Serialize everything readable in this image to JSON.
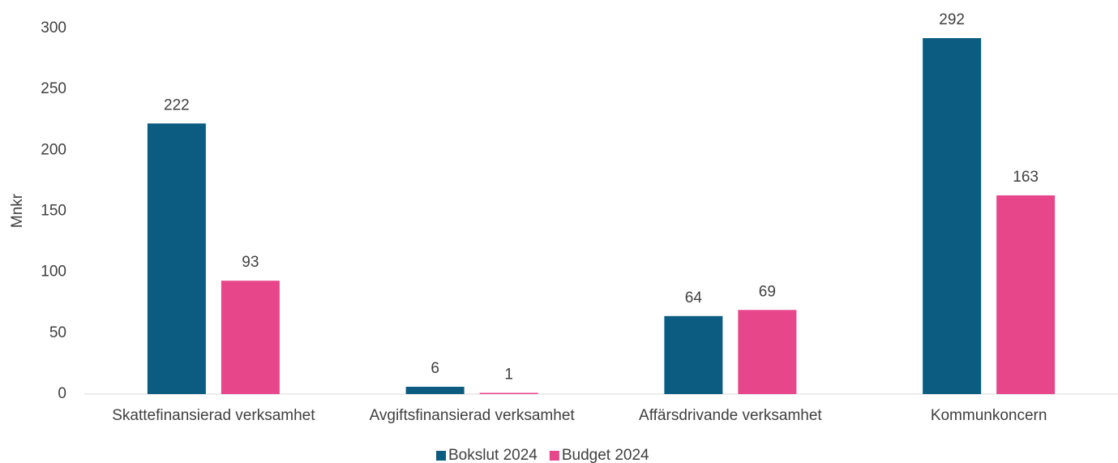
{
  "chart_data": {
    "type": "bar",
    "y_label": "Mnkr",
    "categories": [
      "Skattefinansierad verksamhet",
      "Avgiftsfinansierad verksamhet",
      "Affärsdrivande verksamhet",
      "Kommunkoncern"
    ],
    "series": [
      {
        "name": "Bokslut 2024",
        "color": "#0b5c80",
        "values": [
          222,
          6,
          64,
          292
        ]
      },
      {
        "name": "Budget 2024",
        "color": "#e8468a",
        "values": [
          93,
          1,
          69,
          163
        ]
      }
    ],
    "ylim": [
      0,
      300
    ],
    "yticks": [
      0,
      50,
      100,
      150,
      200,
      250,
      300
    ],
    "grid": false,
    "legend": "bottom"
  }
}
